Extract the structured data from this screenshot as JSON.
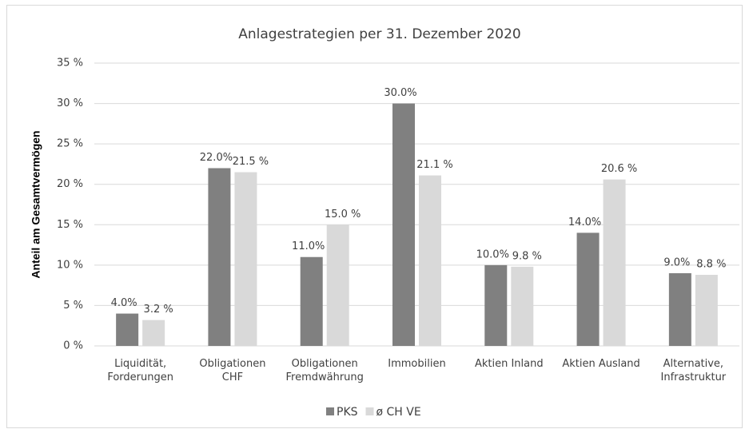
{
  "chart_data": {
    "type": "bar",
    "title": "Anlagestrategien per 31. Dezember 2020",
    "y_label": "Anteil am Gesamtvermögen",
    "categories": [
      "Liquidität,\nForderungen",
      "Obligationen\nCHF",
      "Obligationen\nFremdwährung",
      "Immobilien",
      "Aktien Inland",
      "Aktien Ausland",
      "Alternative,\nInfrastruktur"
    ],
    "series": [
      {
        "name": "PKS",
        "color": "#808080",
        "values": [
          4.0,
          22.0,
          11.0,
          30.0,
          10.0,
          14.0,
          9.0
        ],
        "value_labels": [
          "4.0%",
          "22.0%",
          "11.0%",
          "30.0%",
          "10.0%",
          "14.0%",
          "9.0%"
        ]
      },
      {
        "name": "ø CH VE",
        "color": "#d9d9d9",
        "values": [
          3.2,
          21.5,
          15.0,
          21.1,
          9.8,
          20.6,
          8.8
        ],
        "value_labels": [
          "3.2 %",
          "21.5 %",
          "15.0 %",
          "21.1 %",
          "9.8 %",
          "20.6 %",
          "8.8 %"
        ]
      }
    ],
    "ylim": [
      0,
      35
    ],
    "yticks": [
      {
        "value": 0,
        "label": "0 %"
      },
      {
        "value": 5,
        "label": "5 %"
      },
      {
        "value": 10,
        "label": "10 %"
      },
      {
        "value": 15,
        "label": "15 %"
      },
      {
        "value": 20,
        "label": "20 %"
      },
      {
        "value": 25,
        "label": "25 %"
      },
      {
        "value": 30,
        "label": "30 %"
      },
      {
        "value": 35,
        "label": "35 %"
      }
    ],
    "grid": true,
    "legend": "bottom"
  }
}
